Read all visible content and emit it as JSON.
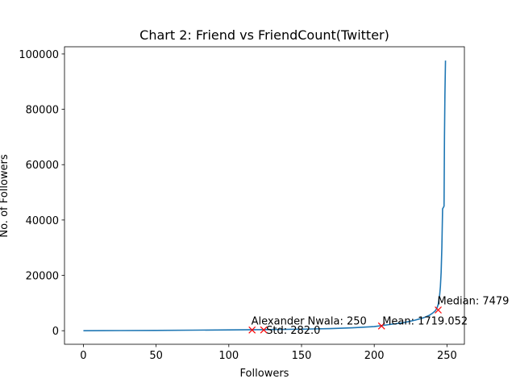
{
  "chart_data": {
    "type": "line",
    "title": "Chart 2: Friend vs FriendCount(Twitter)",
    "xlabel": "Followers",
    "ylabel": "No. of Followers",
    "xlim": [
      -13,
      262
    ],
    "ylim": [
      -4900,
      102600
    ],
    "xticks": [
      0,
      50,
      100,
      150,
      200,
      250
    ],
    "yticks": [
      0,
      20000,
      40000,
      60000,
      80000,
      100000
    ],
    "grid": false,
    "series": [
      {
        "color": "#1f77b4",
        "x": [
          0,
          25,
          50,
          75,
          100,
          125,
          150,
          170,
          185,
          200,
          210,
          220,
          228,
          234,
          238,
          240,
          242,
          243,
          244,
          245,
          245.5,
          246,
          246.5,
          247,
          247.5,
          248,
          248.3,
          248.6,
          249
        ],
        "y": [
          0,
          50,
          120,
          200,
          290,
          400,
          560,
          750,
          1050,
          1500,
          2200,
          2900,
          3800,
          4700,
          5600,
          6300,
          7200,
          8000,
          9500,
          13000,
          16000,
          21000,
          30000,
          44000,
          44500,
          45000,
          70000,
          85000,
          97600
        ]
      }
    ],
    "markers": [
      {
        "x": 116,
        "y": 250,
        "label": "Alexander Nwala: 250",
        "color": "#ff0000",
        "marker": "x"
      },
      {
        "x": 124,
        "y": 282,
        "label": "Std: 282.0",
        "color": "#ff0000",
        "marker": "x"
      },
      {
        "x": 205,
        "y": 1719,
        "label": "Mean: 1719.052",
        "color": "#ff0000",
        "marker": "x"
      },
      {
        "x": 244,
        "y": 7479,
        "label": "Median: 7479",
        "color": "#ff0000",
        "marker": "x"
      }
    ]
  }
}
